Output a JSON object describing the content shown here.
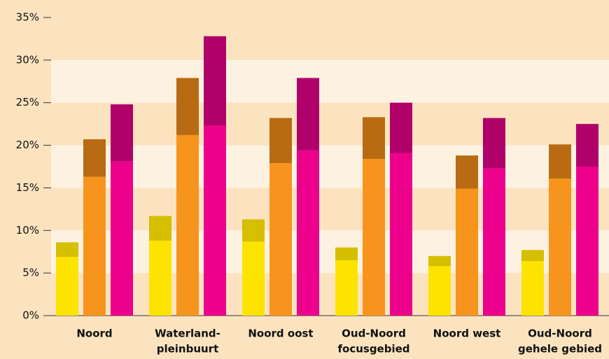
{
  "chart_data": {
    "type": "grouped-stacked-bar",
    "categories": [
      [
        "Noord"
      ],
      [
        "Waterland-",
        "pleinbuurt"
      ],
      [
        "Noord oost"
      ],
      [
        "Oud-Noord",
        "focusgebied"
      ],
      [
        "Noord west"
      ],
      [
        "Oud-Noord",
        "gehele gebied"
      ]
    ],
    "groups": [
      {
        "segments": [
          {
            "color": "#fde400",
            "values": [
              6.9,
              8.8,
              8.7,
              6.5,
              5.8,
              6.4
            ]
          },
          {
            "color": "#d6be00",
            "values": [
              1.7,
              2.9,
              2.6,
              1.5,
              1.2,
              1.3
            ]
          }
        ]
      },
      {
        "segments": [
          {
            "color": "#f7941d",
            "values": [
              16.3,
              21.2,
              17.9,
              18.4,
              14.9,
              16.1
            ]
          },
          {
            "color": "#b86b12",
            "values": [
              4.4,
              6.7,
              5.3,
              4.9,
              3.9,
              4.0
            ]
          }
        ]
      },
      {
        "segments": [
          {
            "color": "#ec008c",
            "values": [
              18.1,
              22.3,
              19.4,
              19.1,
              17.3,
              17.5
            ]
          },
          {
            "color": "#b0006a",
            "values": [
              6.7,
              10.5,
              8.5,
              5.9,
              5.9,
              5.0
            ]
          }
        ]
      }
    ],
    "ylim": [
      0,
      35
    ],
    "yticks": [
      {
        "value": 0,
        "label": "0%"
      },
      {
        "value": 5,
        "label": "5%"
      },
      {
        "value": 10,
        "label": "10%"
      },
      {
        "value": 15,
        "label": "15%"
      },
      {
        "value": 20,
        "label": "20%"
      },
      {
        "value": 25,
        "label": "25%"
      },
      {
        "value": 30,
        "label": "30%"
      },
      {
        "value": 35,
        "label": "35%"
      }
    ],
    "grid": true
  }
}
